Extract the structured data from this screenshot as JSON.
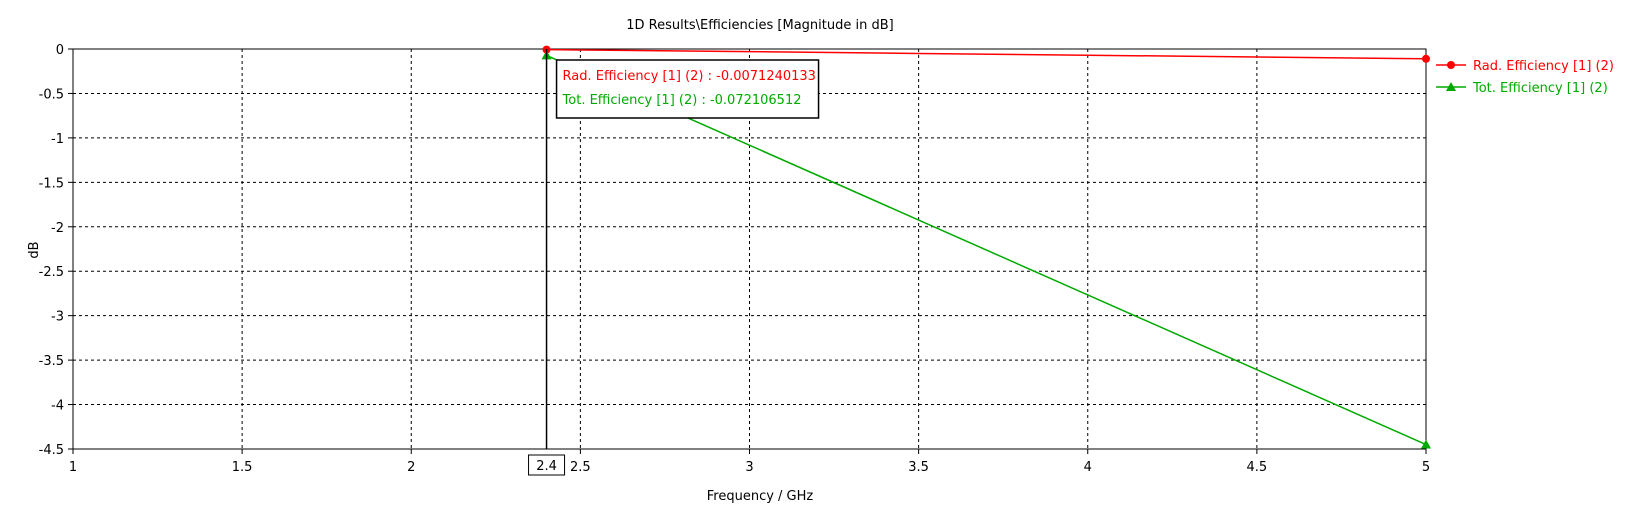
{
  "chart_data": {
    "type": "line",
    "title": "1D Results\\Efficiencies [Magnitude in dB]",
    "xlabel": "Frequency / GHz",
    "ylabel": "dB",
    "xlim": [
      1,
      5
    ],
    "ylim": [
      -4.5,
      0
    ],
    "x_ticks": [
      1,
      1.5,
      2,
      2.5,
      3,
      3.5,
      4,
      4.5,
      5
    ],
    "y_ticks": [
      0,
      -0.5,
      -1,
      -1.5,
      -2,
      -2.5,
      -3,
      -3.5,
      -4,
      -4.5
    ],
    "grid": true,
    "legend_position": "right",
    "series": [
      {
        "name": "Rad. Efficiency [1] (2)",
        "color": "#ff0000",
        "marker": "circle",
        "x": [
          2.4,
          3,
          3.5,
          4,
          4.5,
          5
        ],
        "values": [
          -0.0071240133,
          -0.03,
          -0.05,
          -0.07,
          -0.09,
          -0.11
        ]
      },
      {
        "name": "Tot. Efficiency [1] (2)",
        "color": "#00aa00",
        "marker": "triangle",
        "x": [
          2.4,
          5
        ],
        "values": [
          -0.072106512,
          -4.45
        ]
      }
    ],
    "marker_line": {
      "x": 2.4,
      "label": "2.4",
      "readouts": [
        {
          "text": "Rad. Efficiency [1] (2) : -0.0071240133",
          "color": "#ff0000"
        },
        {
          "text": "Tot. Efficiency [1] (2) : -0.072106512",
          "color": "#00aa00"
        }
      ]
    }
  }
}
